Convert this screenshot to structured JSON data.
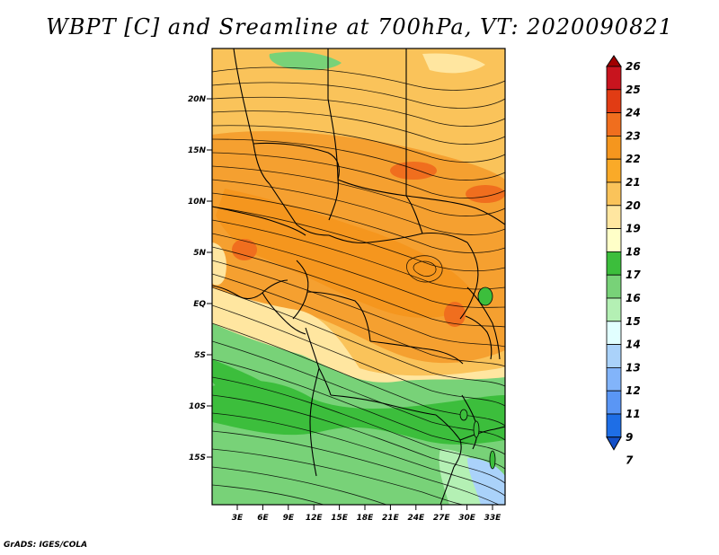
{
  "title": "WBPT [C] and Sreamline at 700hPa, VT: 2020090821",
  "credit": "GrADS: IGES/COLA",
  "map": {
    "lat_labels": [
      "20N",
      "15N",
      "10N",
      "5N",
      "EQ",
      "5S",
      "10S",
      "15S"
    ],
    "lon_labels": [
      "3E",
      "6E",
      "9E",
      "12E",
      "15E",
      "18E",
      "21E",
      "24E",
      "27E",
      "30E",
      "33E"
    ]
  },
  "legend": {
    "labels": [
      "26",
      "25",
      "24",
      "23",
      "22",
      "21",
      "20",
      "19",
      "18",
      "17",
      "16",
      "15",
      "14",
      "13",
      "12",
      "11",
      "9",
      "7"
    ],
    "colors": [
      "#a00000",
      "#c8141e",
      "#e13c14",
      "#f06e1e",
      "#f5961e",
      "#faaa28",
      "#fac35a",
      "#ffe6a0",
      "#ffffc8",
      "#3cbe3c",
      "#78d278",
      "#b4f0b4",
      "#e1ffff",
      "#aad2fa",
      "#82b4fa",
      "#5a96f5",
      "#1e6ee6",
      "#1450c8"
    ]
  }
}
